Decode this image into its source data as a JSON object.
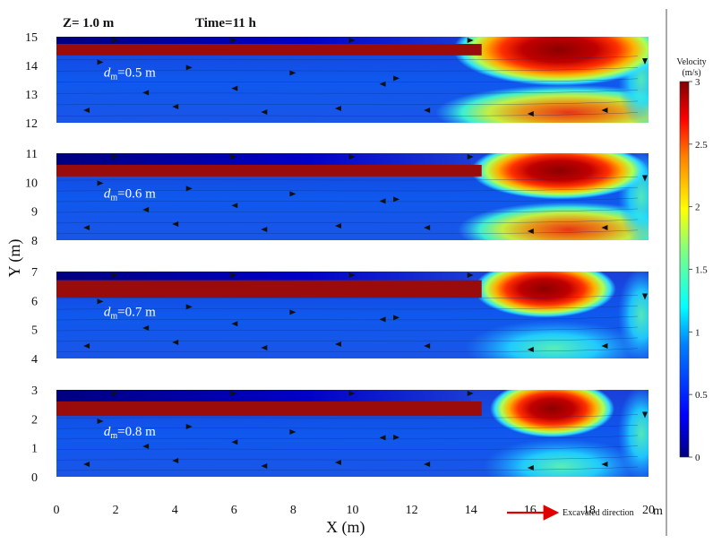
{
  "header": {
    "z_label": "Z= 1.0 m",
    "time_label": "Time=11 h"
  },
  "axes": {
    "x_title": "X (m)",
    "y_title": "Y (m)",
    "x_unit_suffix": "m",
    "x_ticks": [
      0,
      2,
      4,
      6,
      8,
      10,
      12,
      14,
      16,
      18,
      20
    ],
    "y_ticks": [
      0,
      1,
      2,
      3,
      4,
      5,
      6,
      7,
      8,
      9,
      10,
      11,
      12,
      13,
      14,
      15
    ]
  },
  "colorbar": {
    "title_line1": "Velocity",
    "title_line2": "(m/s)",
    "ticks": [
      "0",
      "0.5",
      "1",
      "1.5",
      "2",
      "2.5",
      "3"
    ],
    "tick_values": [
      0,
      0.5,
      1,
      1.5,
      2,
      2.5,
      3
    ],
    "range": [
      0,
      3
    ],
    "colors": [
      "#00007f",
      "#0000ff",
      "#0080ff",
      "#00ffff",
      "#80ff80",
      "#ffff00",
      "#ff8000",
      "#ff0000",
      "#7f0000"
    ]
  },
  "annotation": {
    "excavated_label": "Excavated direction",
    "arrow_color": "#e00000"
  },
  "chart_data": {
    "type": "heatmap",
    "title": "",
    "xlabel": "X (m)",
    "ylabel": "Y (m)",
    "xlim": [
      0,
      20
    ],
    "ylim": [
      0,
      15
    ],
    "grid": false,
    "legend": "colorbar at right",
    "colormap": "jet",
    "panels": [
      {
        "name": "dm=0.8 m",
        "label_prefix": "d",
        "label_sub": "m",
        "label_rest": "=0.8 m",
        "y_range": [
          0,
          3
        ],
        "jet_y_range": [
          2.1,
          2.6
        ],
        "jet_x_end": 14,
        "high_zone_x": [
          15,
          18.5
        ],
        "peak_velocity": 3
      },
      {
        "name": "dm=0.7 m",
        "label_prefix": "d",
        "label_sub": "m",
        "label_rest": "=0.7 m",
        "y_range": [
          4,
          7
        ],
        "jet_y_range": [
          6.1,
          6.7
        ],
        "jet_x_end": 14,
        "high_zone_x": [
          14.5,
          18.5
        ],
        "peak_velocity": 3
      },
      {
        "name": "dm=0.6 m",
        "label_prefix": "d",
        "label_sub": "m",
        "label_rest": "=0.6 m",
        "y_range": [
          8,
          11
        ],
        "jet_y_range": [
          10.2,
          10.6
        ],
        "jet_x_end": 14,
        "high_zone_x": [
          14.5,
          19.5
        ],
        "peak_velocity": 3
      },
      {
        "name": "dm=0.5 m",
        "label_prefix": "d",
        "label_sub": "m",
        "label_rest": "=0.5 m",
        "y_range": [
          12,
          15
        ],
        "jet_y_range": [
          14.35,
          14.75
        ],
        "jet_x_end": 14,
        "high_zone_x": [
          14,
          20
        ],
        "peak_velocity": 3
      }
    ]
  }
}
